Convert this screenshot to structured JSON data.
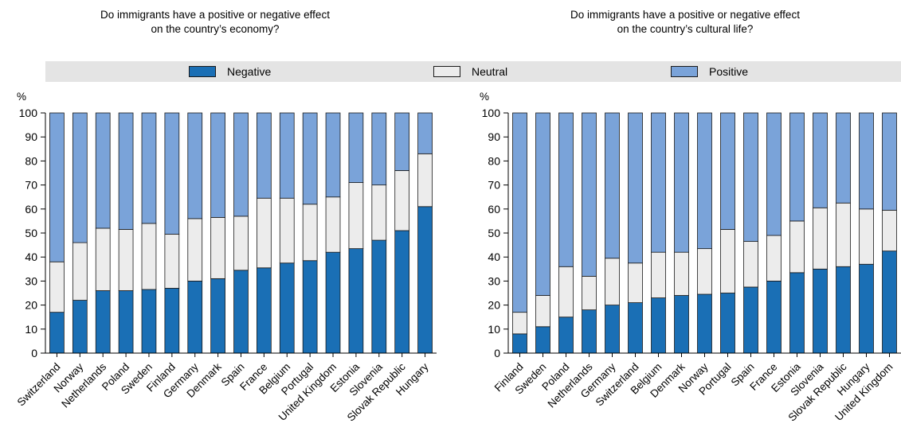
{
  "legend": {
    "items": [
      {
        "label": "Negative",
        "color": "#1a6fb5"
      },
      {
        "label": "Neutral",
        "color": "#ececec"
      },
      {
        "label": "Positive",
        "color": "#7aa3d9"
      }
    ]
  },
  "chart_data": [
    {
      "type": "bar",
      "stacked": true,
      "title": "Do immigrants have a positive or negative effect on the country’s economy?",
      "title_lines": [
        "Do immigrants have a positive or negative effect",
        "on the country’s economy?"
      ],
      "ylabel": "%",
      "ylim": [
        0,
        100
      ],
      "yticks": [
        0,
        10,
        20,
        30,
        40,
        50,
        60,
        70,
        80,
        90,
        100
      ],
      "categories": [
        "Switzerland",
        "Norway",
        "Netherlands",
        "Poland",
        "Sweden",
        "Finland",
        "Germany",
        "Denmark",
        "Spain",
        "France",
        "Belgium",
        "Portugal",
        "United Kingdom",
        "Estonia",
        "Slovenia",
        "Slovak Republic",
        "Hungary"
      ],
      "series": [
        {
          "name": "Negative",
          "values": [
            17,
            22,
            26,
            26,
            26.5,
            27,
            30,
            31,
            34.5,
            35.5,
            37.5,
            38.5,
            42,
            43.5,
            47,
            51,
            61
          ]
        },
        {
          "name": "Neutral",
          "values": [
            21,
            24,
            26,
            25.5,
            27.5,
            22.5,
            26,
            25.5,
            22.5,
            29,
            27,
            23.5,
            23,
            27.5,
            23,
            25,
            22
          ]
        },
        {
          "name": "Positive",
          "values": [
            62,
            54,
            48,
            48.5,
            46,
            50.5,
            44,
            43.5,
            43,
            35.5,
            35.5,
            38,
            35,
            29,
            30,
            24,
            17
          ]
        }
      ]
    },
    {
      "type": "bar",
      "stacked": true,
      "title": "Do immigrants have a positive or negative effect on the country’s cultural life?",
      "title_lines": [
        "Do immigrants have a positive or negative effect",
        "on the country’s cultural life?"
      ],
      "ylabel": "%",
      "ylim": [
        0,
        100
      ],
      "yticks": [
        0,
        10,
        20,
        30,
        40,
        50,
        60,
        70,
        80,
        90,
        100
      ],
      "categories": [
        "Finland",
        "Sweden",
        "Poland",
        "Netherlands",
        "Germany",
        "Switzerland",
        "Belgium",
        "Denmark",
        "Norway",
        "Portugal",
        "Spain",
        "France",
        "Estonia",
        "Slovenia",
        "Slovak Republic",
        "Hungary",
        "United Kingdom"
      ],
      "series": [
        {
          "name": "Negative",
          "values": [
            8,
            11,
            15,
            18,
            20,
            21,
            23,
            24,
            24.5,
            25,
            27.5,
            30,
            33.5,
            35,
            36,
            37,
            42.5
          ]
        },
        {
          "name": "Neutral",
          "values": [
            9,
            13,
            21,
            14,
            19.5,
            16.5,
            19,
            18,
            19,
            26.5,
            19,
            19,
            21.5,
            25.5,
            26.5,
            23,
            17
          ]
        },
        {
          "name": "Positive",
          "values": [
            83,
            76,
            64,
            68,
            60.5,
            62.5,
            58,
            58,
            56.5,
            48.5,
            53.5,
            51,
            45,
            39.5,
            37.5,
            40,
            40.5
          ]
        }
      ]
    }
  ]
}
